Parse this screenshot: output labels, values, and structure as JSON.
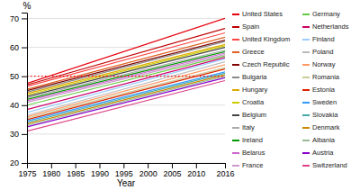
{
  "chart_data": {
    "type": "line",
    "xlabel": "Year",
    "ylabel": "%",
    "x": [
      1975,
      2016
    ],
    "xlim": [
      1975,
      2016
    ],
    "ylim": [
      20,
      72
    ],
    "xticks": [
      1975,
      1980,
      1985,
      1990,
      1995,
      2000,
      2005,
      2010,
      2016
    ],
    "yticks": [
      20,
      30,
      40,
      50,
      60,
      70
    ],
    "grid": "y",
    "legend": "right",
    "reference_line": {
      "y": 50,
      "color": "red",
      "line_style": "dotted"
    },
    "series": [
      {
        "name": "United States",
        "color": "#e8000d",
        "values": [
          47.5,
          70.0
        ]
      },
      {
        "name": "Spain",
        "color": "#c00000",
        "values": [
          47.0,
          66.5
        ]
      },
      {
        "name": "United Kingdom",
        "color": "#ff4444",
        "values": [
          46.5,
          65.0
        ]
      },
      {
        "name": "Greece",
        "color": "#e06020",
        "values": [
          45.5,
          63.5
        ]
      },
      {
        "name": "Czech Republic",
        "color": "#7f0000",
        "values": [
          45.0,
          62.5
        ]
      },
      {
        "name": "Bulgaria",
        "color": "#888888",
        "values": [
          44.5,
          62.0
        ]
      },
      {
        "name": "Hungary",
        "color": "#ddaa00",
        "values": [
          44.0,
          61.0
        ]
      },
      {
        "name": "Croatia",
        "color": "#cccc00",
        "values": [
          43.5,
          60.5
        ]
      },
      {
        "name": "Belgium",
        "color": "#444444",
        "values": [
          43.0,
          60.0
        ]
      },
      {
        "name": "Italy",
        "color": "#aaaaaa",
        "values": [
          42.5,
          59.0
        ]
      },
      {
        "name": "Ireland",
        "color": "#009900",
        "values": [
          42.0,
          58.5
        ]
      },
      {
        "name": "Belarus",
        "color": "#cc66cc",
        "values": [
          41.5,
          58.0
        ]
      },
      {
        "name": "France",
        "color": "#cc99cc",
        "values": [
          41.0,
          57.5
        ]
      },
      {
        "name": "Germany",
        "color": "#66cc44",
        "values": [
          40.0,
          57.0
        ]
      },
      {
        "name": "Netherlands",
        "color": "#cc0066",
        "values": [
          38.5,
          56.5
        ]
      },
      {
        "name": "Finland",
        "color": "#99ccff",
        "values": [
          37.5,
          56.0
        ]
      },
      {
        "name": "Poland",
        "color": "#bbbbbb",
        "values": [
          36.5,
          55.0
        ]
      },
      {
        "name": "Norway",
        "color": "#ff9966",
        "values": [
          36.0,
          54.0
        ]
      },
      {
        "name": "Romania",
        "color": "#cccc99",
        "values": [
          35.5,
          53.0
        ]
      },
      {
        "name": "Estonia",
        "color": "#dd2200",
        "values": [
          35.0,
          52.5
        ]
      },
      {
        "name": "Sweden",
        "color": "#3399ff",
        "values": [
          34.5,
          51.5
        ]
      },
      {
        "name": "Slovakia",
        "color": "#44aaaa",
        "values": [
          34.0,
          51.0
        ]
      },
      {
        "name": "Denmark",
        "color": "#cc8800",
        "values": [
          33.5,
          50.5
        ]
      },
      {
        "name": "Albania",
        "color": "#99bb99",
        "values": [
          33.0,
          50.0
        ]
      },
      {
        "name": "Austria",
        "color": "#8800cc",
        "values": [
          32.5,
          49.5
        ]
      },
      {
        "name": "Switzerland",
        "color": "#dd4488",
        "values": [
          31.0,
          48.5
        ]
      }
    ]
  }
}
